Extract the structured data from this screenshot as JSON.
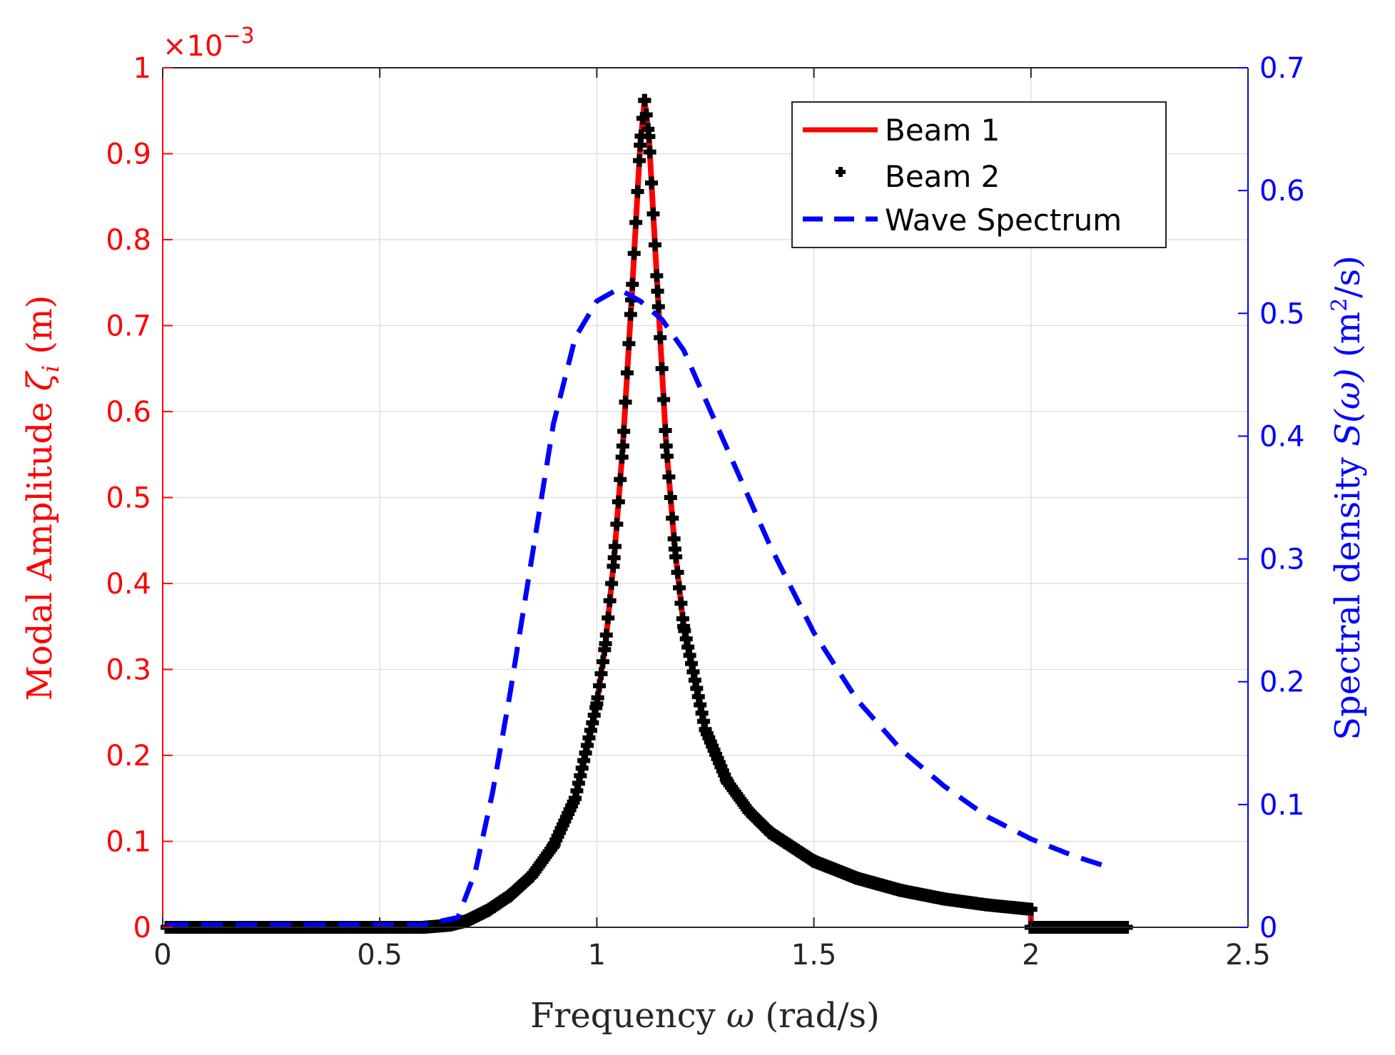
{
  "chart_data": {
    "type": "line",
    "x_axis": {
      "label_text": "Frequency ",
      "label_symbol": "ω",
      "label_units": " (rad/s)",
      "range": [
        0,
        2.5
      ],
      "ticks": [
        0,
        0.5,
        1,
        1.5,
        2,
        2.5
      ],
      "tick_labels": [
        "0",
        "0.5",
        "1",
        "1.5",
        "2",
        "2.5"
      ],
      "grid": true
    },
    "y_axis_left": {
      "label_text": "Modal Amplitude ",
      "label_symbol": "ζ",
      "label_subscript": "i",
      "label_units": " (m)",
      "exponent_label": "×10",
      "exponent_power": "−3",
      "range": [
        0,
        1
      ],
      "ticks": [
        0,
        0.1,
        0.2,
        0.3,
        0.4,
        0.5,
        0.6,
        0.7,
        0.8,
        0.9,
        1
      ],
      "tick_labels": [
        "0",
        "0.1",
        "0.2",
        "0.3",
        "0.4",
        "0.5",
        "0.6",
        "0.7",
        "0.8",
        "0.9",
        "1"
      ],
      "color": "#ff0000",
      "grid": true
    },
    "y_axis_right": {
      "label_text": "Spectral density ",
      "label_symbol": "S(ω)",
      "label_units_pre": " (m",
      "label_units_sup": "2",
      "label_units_post": "/s)",
      "range": [
        0,
        0.7
      ],
      "ticks": [
        0,
        0.1,
        0.2,
        0.3,
        0.4,
        0.5,
        0.6,
        0.7
      ],
      "tick_labels": [
        "0",
        "0.1",
        "0.2",
        "0.3",
        "0.4",
        "0.5",
        "0.6",
        "0.7"
      ],
      "color": "#0000ff"
    },
    "legend": {
      "location": "top-right",
      "entries": [
        "Beam 1",
        "Beam 2",
        "Wave Spectrum"
      ]
    },
    "series": [
      {
        "name": "Beam 1",
        "axis": "left",
        "style": "solid",
        "color": "#ff0000",
        "x": [
          0.01,
          0.3,
          0.6,
          0.66,
          0.7,
          0.75,
          0.8,
          0.85,
          0.9,
          0.95,
          1.0,
          1.02,
          1.04,
          1.06,
          1.08,
          1.1,
          1.11,
          1.12,
          1.14,
          1.16,
          1.18,
          1.2,
          1.25,
          1.3,
          1.35,
          1.4,
          1.5,
          1.6,
          1.7,
          1.8,
          1.9,
          2.0,
          2.0,
          2.1,
          2.22
        ],
        "y": [
          0.0,
          0.0,
          0.0,
          0.0025,
          0.0075,
          0.02,
          0.037,
          0.06,
          0.095,
          0.15,
          0.26,
          0.33,
          0.43,
          0.56,
          0.73,
          0.91,
          0.962,
          0.92,
          0.74,
          0.56,
          0.44,
          0.35,
          0.23,
          0.17,
          0.135,
          0.11,
          0.077,
          0.057,
          0.043,
          0.033,
          0.026,
          0.021,
          0.0,
          0.0,
          0.0
        ]
      },
      {
        "name": "Beam 2",
        "axis": "left",
        "style": "plus-markers",
        "color": "#000000",
        "x": [
          0.01,
          0.3,
          0.6,
          0.66,
          0.7,
          0.75,
          0.8,
          0.85,
          0.9,
          0.95,
          1.0,
          1.02,
          1.04,
          1.06,
          1.08,
          1.1,
          1.11,
          1.12,
          1.14,
          1.16,
          1.18,
          1.2,
          1.25,
          1.3,
          1.35,
          1.4,
          1.5,
          1.6,
          1.7,
          1.8,
          1.9,
          2.0,
          2.0,
          2.1,
          2.22
        ],
        "y": [
          0.0,
          0.0,
          0.0,
          0.0025,
          0.0075,
          0.02,
          0.037,
          0.06,
          0.095,
          0.15,
          0.26,
          0.33,
          0.43,
          0.56,
          0.73,
          0.91,
          0.962,
          0.92,
          0.74,
          0.56,
          0.44,
          0.35,
          0.23,
          0.17,
          0.135,
          0.11,
          0.077,
          0.057,
          0.043,
          0.033,
          0.026,
          0.021,
          0.0,
          0.0,
          0.0
        ]
      },
      {
        "name": "Wave Spectrum",
        "axis": "right",
        "style": "dashed",
        "color": "#0000ff",
        "x": [
          0.01,
          0.3,
          0.6,
          0.68,
          0.72,
          0.76,
          0.8,
          0.85,
          0.9,
          0.95,
          1.0,
          1.05,
          1.1,
          1.15,
          1.2,
          1.3,
          1.4,
          1.5,
          1.6,
          1.7,
          1.8,
          1.9,
          2.0,
          2.1,
          2.17
        ],
        "y": [
          0.002,
          0.002,
          0.002,
          0.008,
          0.045,
          0.11,
          0.19,
          0.3,
          0.41,
          0.48,
          0.51,
          0.52,
          0.51,
          0.495,
          0.47,
          0.39,
          0.31,
          0.24,
          0.185,
          0.145,
          0.115,
          0.09,
          0.072,
          0.058,
          0.05
        ]
      }
    ]
  }
}
